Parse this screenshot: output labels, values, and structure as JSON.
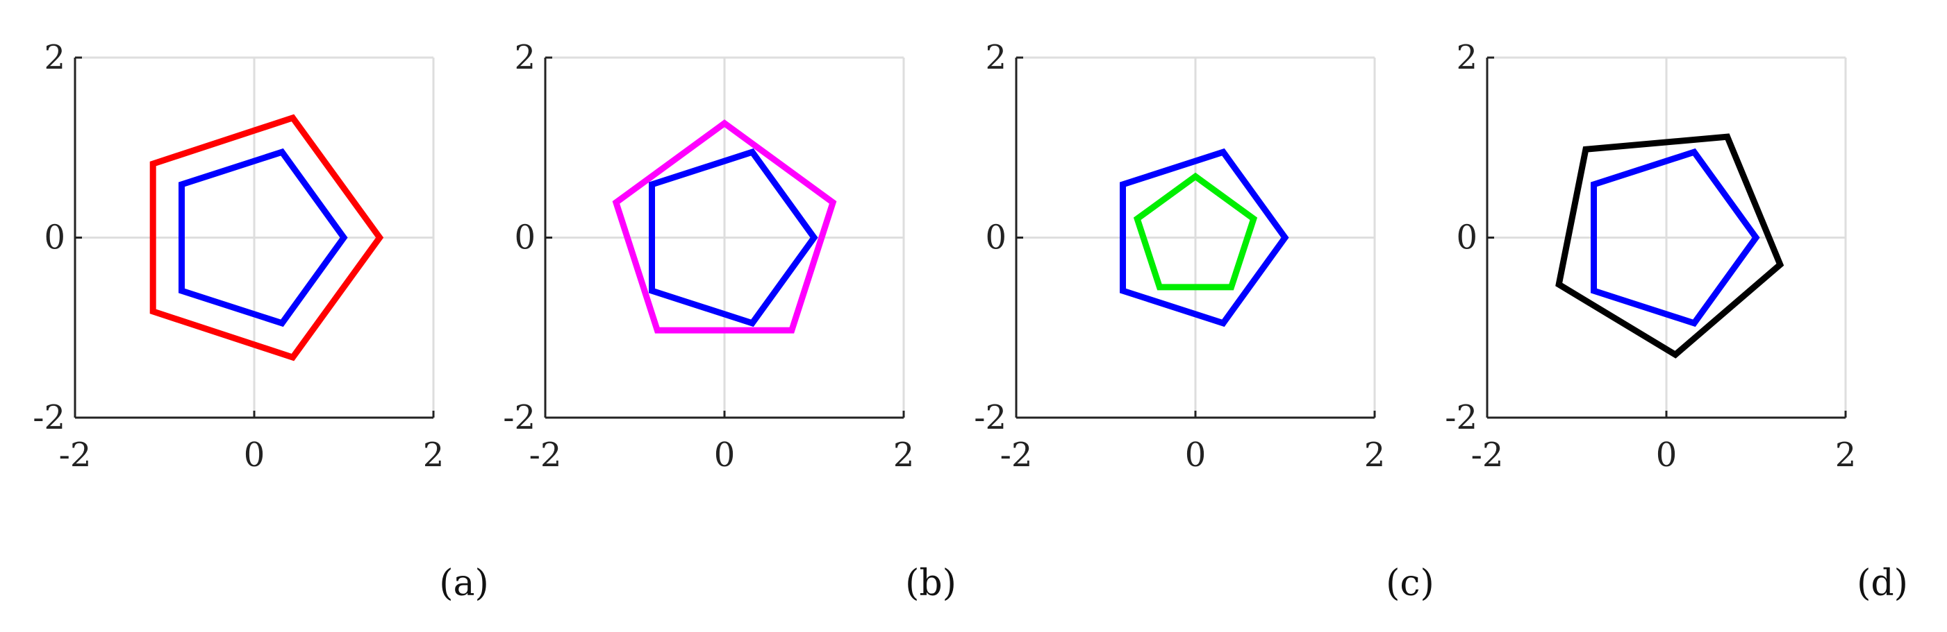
{
  "chart_data": [
    {
      "type": "line",
      "panel_label": "(a)",
      "xlim": [
        -2,
        2
      ],
      "ylim": [
        -2,
        2
      ],
      "xticks": [
        -2,
        0,
        2
      ],
      "yticks": [
        -2,
        0,
        2
      ],
      "grid": true,
      "series": [
        {
          "color": "#ff0000",
          "closed": true,
          "points": [
            [
              1.4,
              0.0
            ],
            [
              0.43,
              1.33
            ],
            [
              -1.13,
              0.82
            ],
            [
              -1.13,
              -0.82
            ],
            [
              0.43,
              -1.33
            ]
          ]
        },
        {
          "color": "#0000ff",
          "closed": true,
          "points": [
            [
              1.0,
              0.0
            ],
            [
              0.31,
              0.95
            ],
            [
              -0.81,
              0.59
            ],
            [
              -0.81,
              -0.59
            ],
            [
              0.31,
              -0.95
            ]
          ]
        }
      ]
    },
    {
      "type": "line",
      "panel_label": "(b)",
      "xlim": [
        -2,
        2
      ],
      "ylim": [
        -2,
        2
      ],
      "xticks": [
        -2,
        0,
        2
      ],
      "yticks": [
        -2,
        0,
        2
      ],
      "grid": true,
      "series": [
        {
          "color": "#ff00ff",
          "closed": true,
          "points": [
            [
              0.0,
              1.27
            ],
            [
              1.21,
              0.39
            ],
            [
              0.75,
              -1.03
            ],
            [
              -0.75,
              -1.03
            ],
            [
              -1.21,
              0.39
            ]
          ]
        },
        {
          "color": "#0000ff",
          "closed": true,
          "points": [
            [
              1.0,
              0.0
            ],
            [
              0.31,
              0.95
            ],
            [
              -0.81,
              0.59
            ],
            [
              -0.81,
              -0.59
            ],
            [
              0.31,
              -0.95
            ]
          ]
        }
      ]
    },
    {
      "type": "line",
      "panel_label": "(c)",
      "xlim": [
        -2,
        2
      ],
      "ylim": [
        -2,
        2
      ],
      "xticks": [
        -2,
        0,
        2
      ],
      "yticks": [
        -2,
        0,
        2
      ],
      "grid": true,
      "series": [
        {
          "color": "#00ee00",
          "closed": true,
          "points": [
            [
              0.0,
              0.68
            ],
            [
              0.65,
              0.21
            ],
            [
              0.4,
              -0.55
            ],
            [
              -0.4,
              -0.55
            ],
            [
              -0.65,
              0.21
            ]
          ]
        },
        {
          "color": "#0000ff",
          "closed": true,
          "points": [
            [
              1.0,
              0.0
            ],
            [
              0.31,
              0.95
            ],
            [
              -0.81,
              0.59
            ],
            [
              -0.81,
              -0.59
            ],
            [
              0.31,
              -0.95
            ]
          ]
        }
      ]
    },
    {
      "type": "line",
      "panel_label": "(d)",
      "xlim": [
        -2,
        2
      ],
      "ylim": [
        -2,
        2
      ],
      "xticks": [
        -2,
        0,
        2
      ],
      "yticks": [
        -2,
        0,
        2
      ],
      "grid": true,
      "series": [
        {
          "color": "#000000",
          "closed": true,
          "points": [
            [
              0.68,
              1.12
            ],
            [
              1.27,
              -0.3
            ],
            [
              0.1,
              -1.3
            ],
            [
              -1.2,
              -0.52
            ],
            [
              -0.9,
              0.98
            ]
          ]
        },
        {
          "color": "#0000ff",
          "closed": true,
          "points": [
            [
              1.0,
              0.0
            ],
            [
              0.31,
              0.95
            ],
            [
              -0.81,
              0.59
            ],
            [
              -0.81,
              -0.59
            ],
            [
              0.31,
              -0.95
            ]
          ]
        }
      ]
    }
  ]
}
